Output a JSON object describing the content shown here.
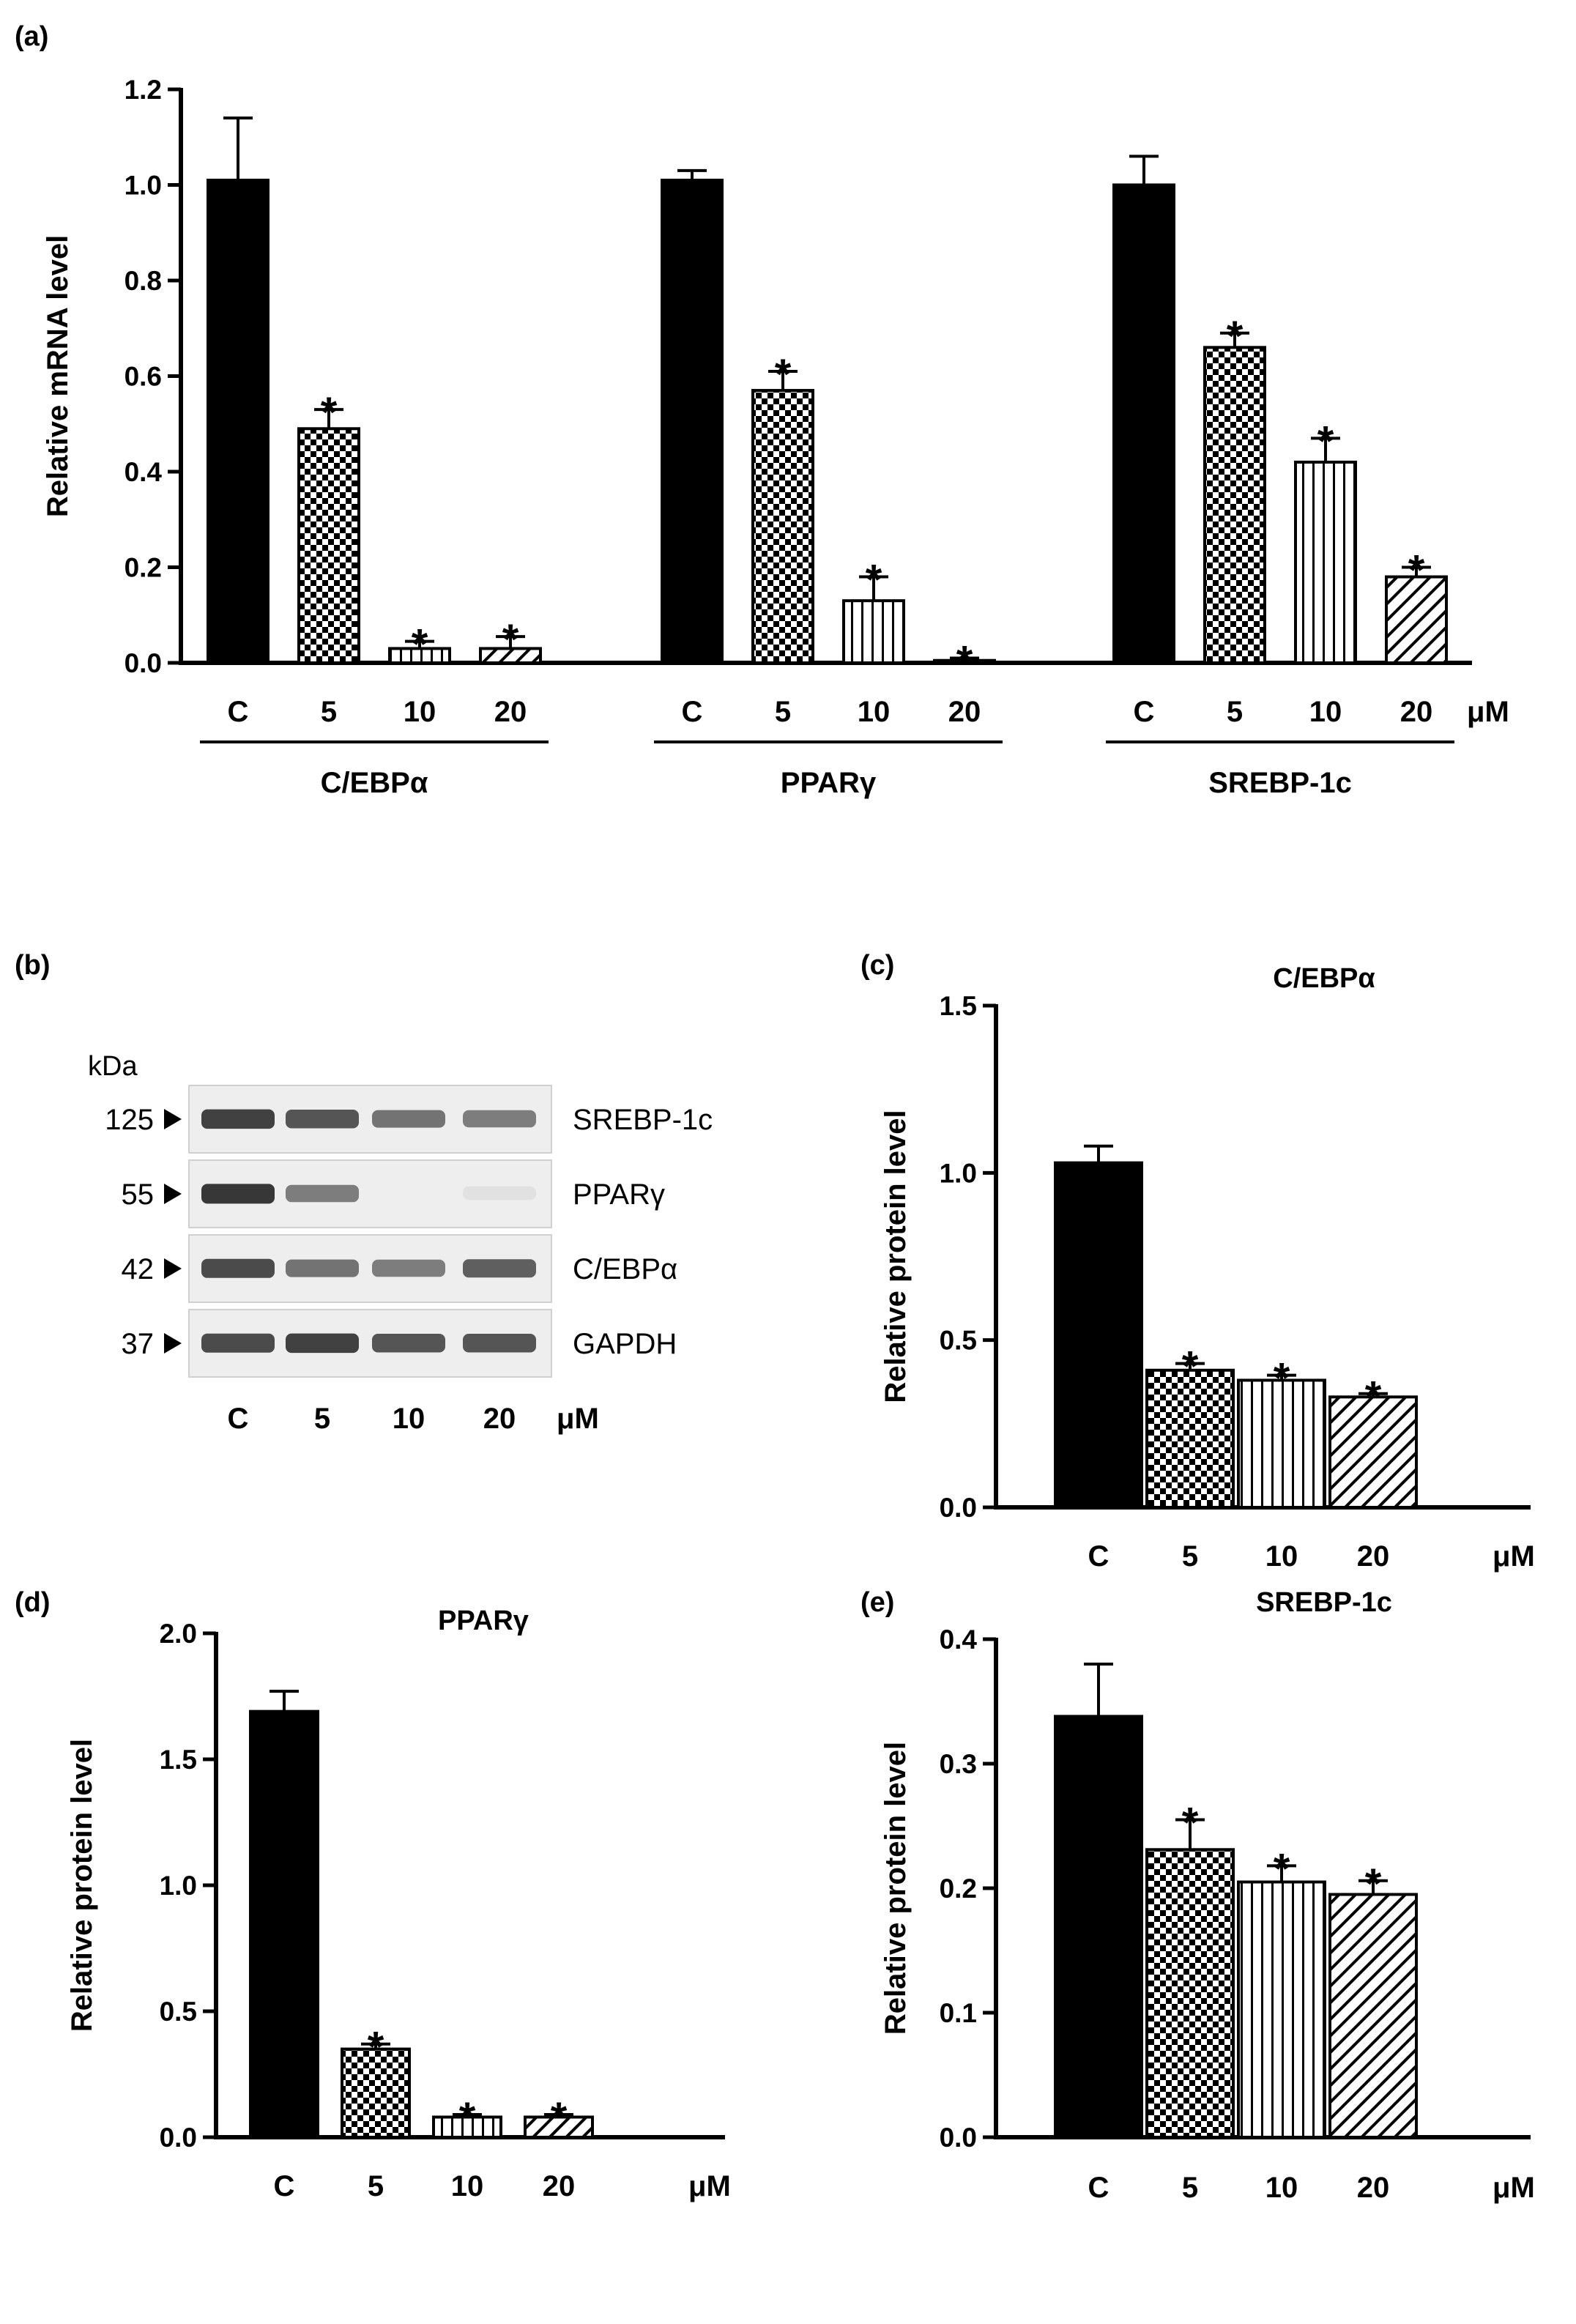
{
  "panel_labels": {
    "a": "(a)",
    "b": "(b)",
    "c": "(c)",
    "d": "(d)",
    "e": "(e)"
  },
  "unit_label": "μM",
  "colors": {
    "bar": "#000000",
    "blot_bg": "#eeeeee",
    "band": "#3a3a3a"
  },
  "chart_data": [
    {
      "id": "a",
      "type": "bar",
      "ylabel": "Relative mRNA level",
      "ylim": [
        0,
        1.2
      ],
      "yticks": [
        0.0,
        0.2,
        0.4,
        0.6,
        0.8,
        1.0,
        1.2
      ],
      "ytick_labels": [
        "0.0",
        "0.2",
        "0.4",
        "0.6",
        "0.8",
        "1.0",
        "1.2"
      ],
      "unit": "μM",
      "groups": [
        {
          "name": "C/EBPα",
          "categories": [
            "C",
            "5",
            "10",
            "20"
          ],
          "values": [
            1.01,
            0.49,
            0.03,
            0.03
          ],
          "errors": [
            0.13,
            0.04,
            0.015,
            0.025
          ],
          "sig": [
            "",
            "*",
            "*",
            "*"
          ]
        },
        {
          "name": "PPARγ",
          "categories": [
            "C",
            "5",
            "10",
            "20"
          ],
          "values": [
            1.01,
            0.57,
            0.13,
            0.005
          ],
          "errors": [
            0.02,
            0.04,
            0.05,
            0.005
          ],
          "sig": [
            "",
            "*",
            "*",
            "*"
          ]
        },
        {
          "name": "SREBP-1c",
          "categories": [
            "C",
            "5",
            "10",
            "20"
          ],
          "values": [
            1.0,
            0.66,
            0.42,
            0.18
          ],
          "errors": [
            0.06,
            0.03,
            0.05,
            0.02
          ],
          "sig": [
            "",
            "*",
            "*",
            "*"
          ]
        }
      ]
    },
    {
      "id": "c",
      "type": "bar",
      "title": "C/EBPα",
      "ylabel": "Relative protein level",
      "ylim": [
        0,
        1.5
      ],
      "yticks": [
        0.0,
        0.5,
        1.0,
        1.5
      ],
      "ytick_labels": [
        "0.0",
        "0.5",
        "1.0",
        "1.5"
      ],
      "unit": "μM",
      "categories": [
        "C",
        "5",
        "10",
        "20"
      ],
      "values": [
        1.03,
        0.41,
        0.38,
        0.33
      ],
      "errors": [
        0.05,
        0.02,
        0.015,
        0.01
      ],
      "sig": [
        "",
        "*",
        "*",
        "*"
      ]
    },
    {
      "id": "d",
      "type": "bar",
      "title": "PPARγ",
      "ylabel": "Relative protein level",
      "ylim": [
        0,
        2.0
      ],
      "yticks": [
        0.0,
        0.5,
        1.0,
        1.5,
        2.0
      ],
      "ytick_labels": [
        "0.0",
        "0.5",
        "1.0",
        "1.5",
        "2.0"
      ],
      "unit": "μM",
      "categories": [
        "C",
        "5",
        "10",
        "20"
      ],
      "values": [
        1.69,
        0.35,
        0.08,
        0.08
      ],
      "errors": [
        0.08,
        0.02,
        0.01,
        0.01
      ],
      "sig": [
        "",
        "*",
        "*",
        "*"
      ]
    },
    {
      "id": "e",
      "type": "bar",
      "title": "SREBP-1c",
      "ylabel": "Relative protein level",
      "ylim": [
        0,
        0.4
      ],
      "yticks": [
        0.0,
        0.1,
        0.2,
        0.3,
        0.4
      ],
      "ytick_labels": [
        "0.0",
        "0.1",
        "0.2",
        "0.3",
        "0.4"
      ],
      "unit": "μM",
      "categories": [
        "C",
        "5",
        "10",
        "20"
      ],
      "values": [
        0.338,
        0.231,
        0.205,
        0.195
      ],
      "errors": [
        0.042,
        0.024,
        0.013,
        0.011
      ],
      "sig": [
        "",
        "*",
        "*",
        "*"
      ]
    }
  ],
  "western_blot": {
    "kda_label": "kDa",
    "rows": [
      {
        "marker": "125",
        "protein": "SREBP-1c",
        "intensity": [
          0.85,
          0.75,
          0.6,
          0.55
        ]
      },
      {
        "marker": "55",
        "protein": "PPARγ",
        "intensity": [
          0.9,
          0.55,
          0.0,
          0.05
        ]
      },
      {
        "marker": "42",
        "protein": "C/EBPα",
        "intensity": [
          0.8,
          0.6,
          0.55,
          0.7
        ]
      },
      {
        "marker": "37",
        "protein": "GAPDH",
        "intensity": [
          0.8,
          0.85,
          0.75,
          0.75
        ]
      }
    ],
    "lanes": [
      "C",
      "5",
      "10",
      "20"
    ],
    "unit": "μM"
  }
}
